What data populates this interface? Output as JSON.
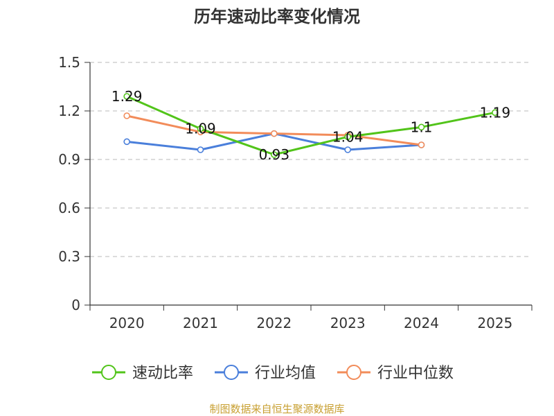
{
  "chart_data": {
    "type": "line",
    "title": "历年速动比率变化情况",
    "categories": [
      "2020",
      "2021",
      "2022",
      "2023",
      "2024",
      "2025"
    ],
    "ylim": [
      0,
      1.5
    ],
    "yticks": [
      "0",
      "0.3",
      "0.6",
      "0.9",
      "1.2",
      "1.5"
    ],
    "ytick_values": [
      0,
      0.3,
      0.6,
      0.9,
      1.2,
      1.5
    ],
    "grid": true,
    "legend_position": "bottom",
    "series": [
      {
        "name": "速动比率",
        "color": "#52c41a",
        "values": [
          1.29,
          1.09,
          0.93,
          1.04,
          1.1,
          1.19
        ],
        "labels": [
          "1.29",
          "1.09",
          "0.93",
          "1.04",
          "1.1",
          "1.19"
        ]
      },
      {
        "name": "行业均值",
        "color": "#4a7fdb",
        "values": [
          1.01,
          0.96,
          1.06,
          0.96,
          0.99,
          null
        ]
      },
      {
        "name": "行业中位数",
        "color": "#f28c5a",
        "values": [
          1.17,
          1.07,
          1.06,
          1.05,
          0.99,
          null
        ]
      }
    ]
  },
  "source": "制图数据来自恒生聚源数据库"
}
